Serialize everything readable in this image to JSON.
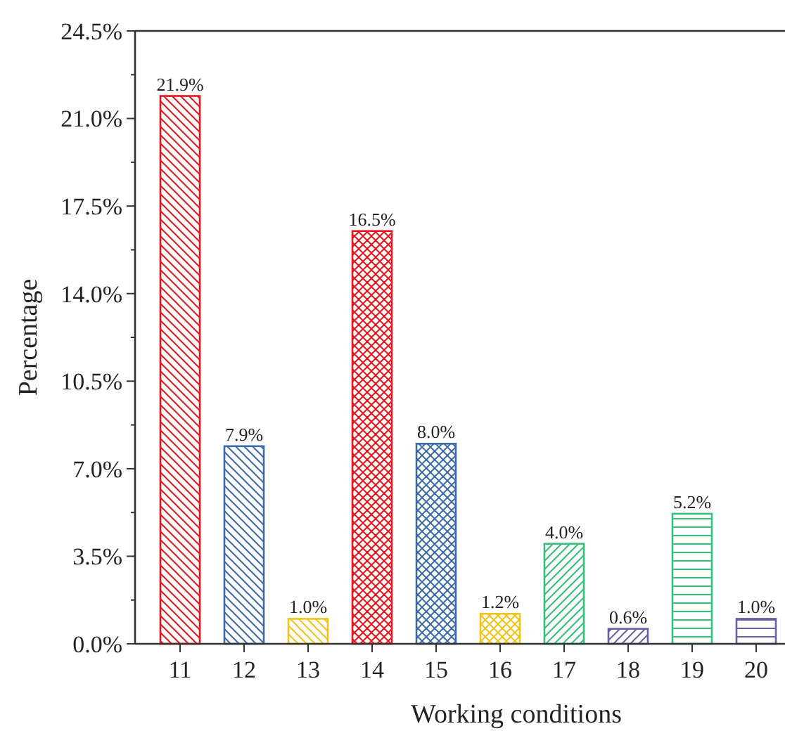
{
  "chart_data": {
    "type": "bar",
    "xlabel": "Working conditions",
    "ylabel": "Percentage",
    "categories": [
      "11",
      "12",
      "13",
      "14",
      "15",
      "16",
      "17",
      "18",
      "19",
      "20"
    ],
    "values": [
      21.9,
      7.9,
      1.0,
      16.5,
      8.0,
      1.2,
      4.0,
      0.6,
      5.2,
      1.0
    ],
    "value_labels": [
      "21.9%",
      "7.9%",
      "1.0%",
      "16.5%",
      "8.0%",
      "1.2%",
      "4.0%",
      "0.6%",
      "5.2%",
      "1.0%"
    ],
    "colors": [
      "#e8141c",
      "#3d6aa8",
      "#f0c419",
      "#e8141c",
      "#3d6aa8",
      "#f0c419",
      "#35c07a",
      "#6a5ea8",
      "#35c07a",
      "#6a5ea8"
    ],
    "ylim": [
      0,
      24.5
    ],
    "yticks": [
      {
        "value": 0,
        "label": "0.0%"
      },
      {
        "value": 3.5,
        "label": "3.5%"
      },
      {
        "value": 7,
        "label": "7.0%"
      },
      {
        "value": 10.5,
        "label": "10.5%"
      },
      {
        "value": 14,
        "label": "14.0%"
      },
      {
        "value": 17.5,
        "label": "17.5%"
      },
      {
        "value": 21,
        "label": "21.0%"
      },
      {
        "value": 24.5,
        "label": "24.5%"
      }
    ],
    "grid": false
  }
}
